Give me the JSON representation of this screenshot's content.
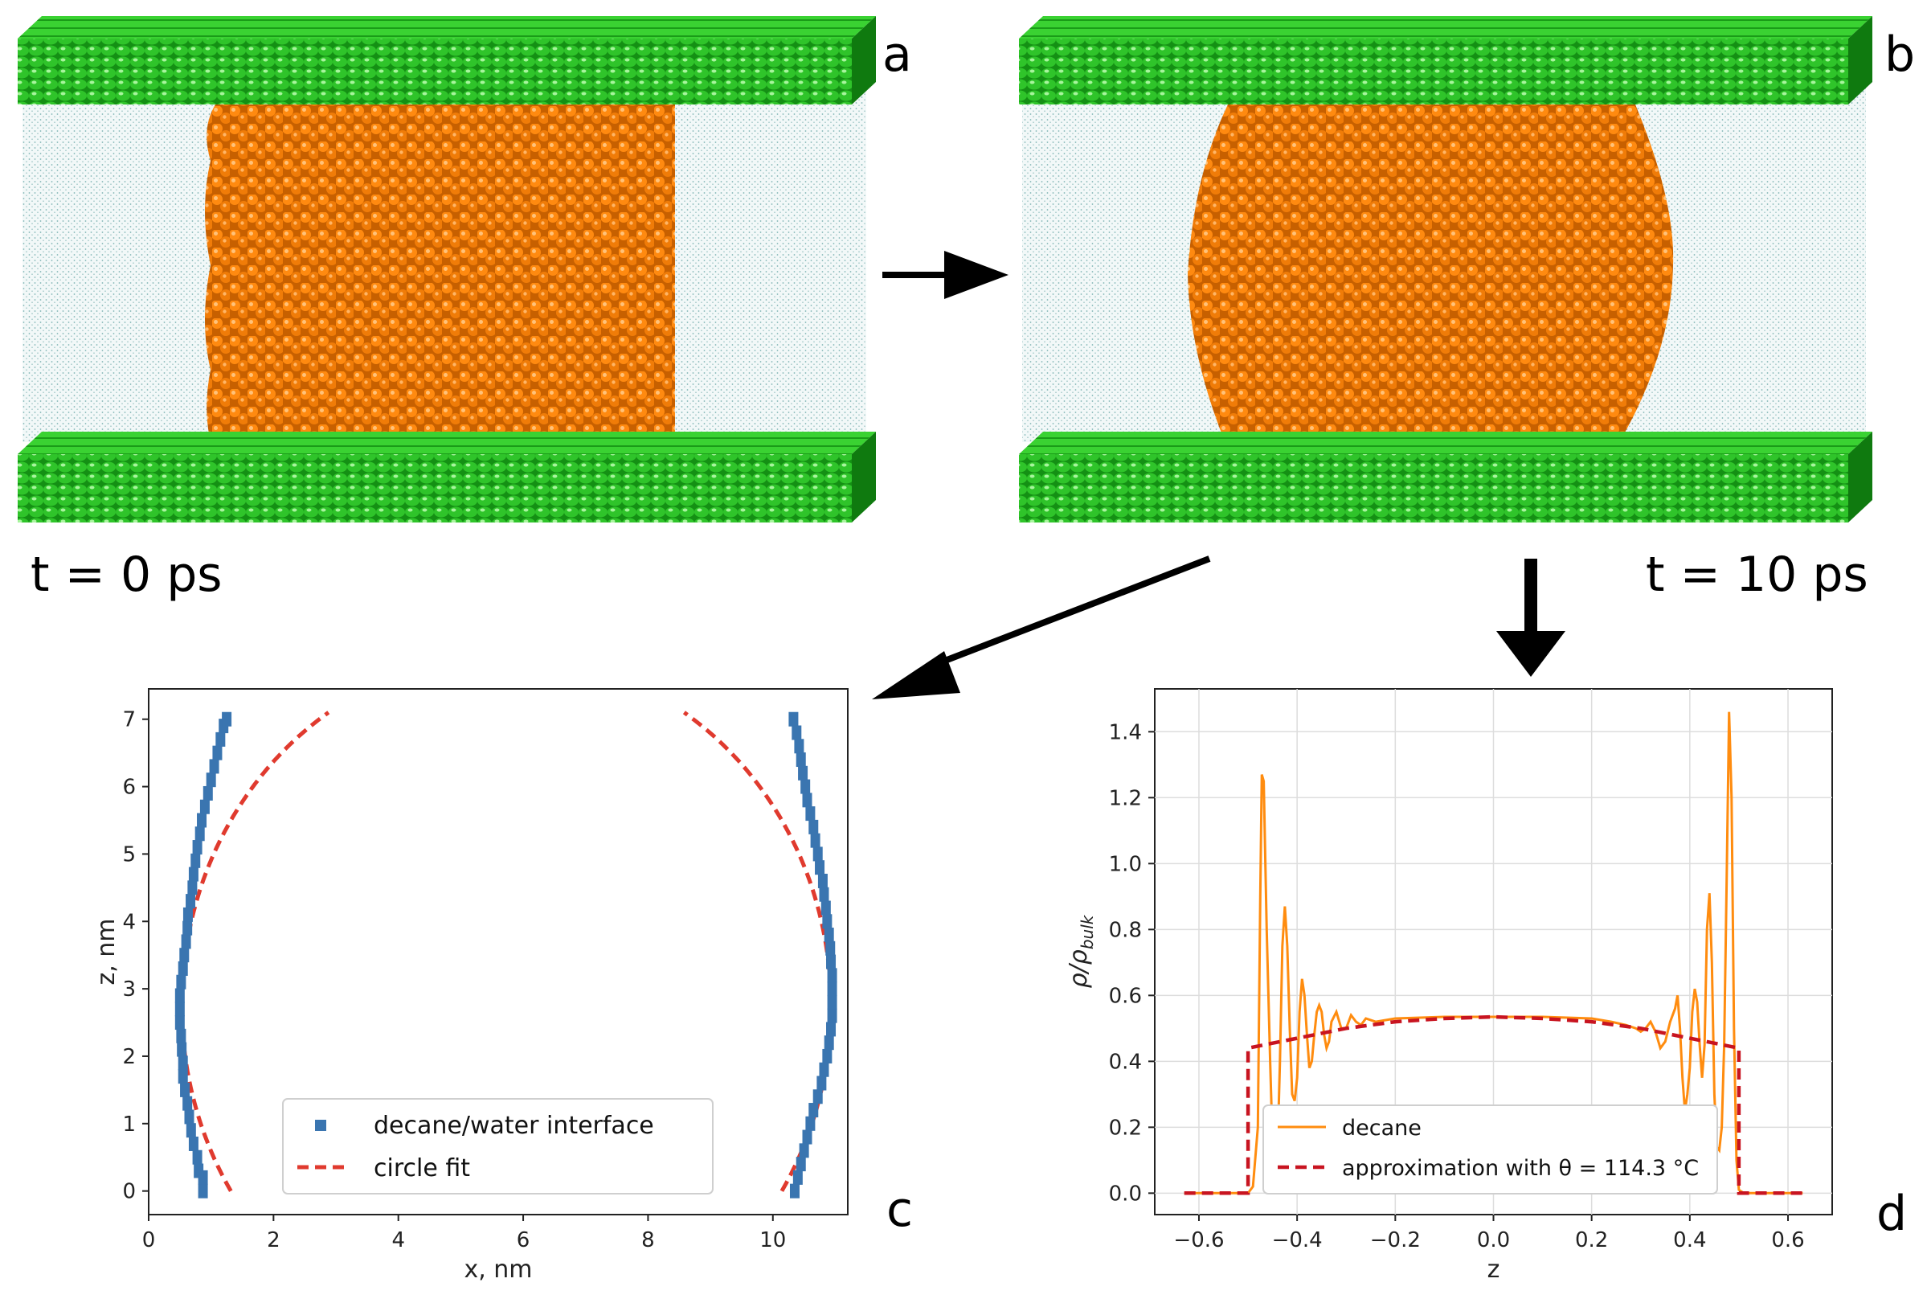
{
  "labels": {
    "panel_a": "a",
    "panel_b": "b",
    "panel_c": "c",
    "panel_d": "d",
    "time_a": "t = 0 ps",
    "time_b": "t = 10 ps"
  },
  "colors": {
    "graphene": "#2fc42a",
    "graphene_dark": "#149014",
    "decane": "#ff8a10",
    "decane_dark": "#b85500",
    "water": "#7fb3b3",
    "interface_marker": "#3a75b0",
    "circle_fit": "#e03a2e",
    "density_line": "#ff8c0f",
    "approx_line": "#c81420"
  },
  "chart_data": [
    {
      "type": "scatter",
      "panel": "c",
      "title": "",
      "xlabel": "x, nm",
      "ylabel": "z, nm",
      "xlim": [
        0,
        11.2
      ],
      "ylim": [
        -0.35,
        7.45
      ],
      "xticks": [
        0,
        2,
        4,
        6,
        8,
        10
      ],
      "yticks": [
        0,
        1,
        2,
        3,
        4,
        5,
        6,
        7
      ],
      "grid": false,
      "legend_position": "lower-center",
      "series": [
        {
          "name": "decane/water interface",
          "kind": "markers",
          "left_branch": [
            [
              0.87,
              0.0
            ],
            [
              0.87,
              0.2
            ],
            [
              0.8,
              0.3
            ],
            [
              0.78,
              0.5
            ],
            [
              0.72,
              0.7
            ],
            [
              0.68,
              0.9
            ],
            [
              0.65,
              1.1
            ],
            [
              0.62,
              1.3
            ],
            [
              0.58,
              1.5
            ],
            [
              0.55,
              1.7
            ],
            [
              0.55,
              1.9
            ],
            [
              0.53,
              2.1
            ],
            [
              0.52,
              2.3
            ],
            [
              0.5,
              2.5
            ],
            [
              0.5,
              2.7
            ],
            [
              0.5,
              2.9
            ],
            [
              0.52,
              3.1
            ],
            [
              0.55,
              3.3
            ],
            [
              0.57,
              3.5
            ],
            [
              0.6,
              3.7
            ],
            [
              0.62,
              3.9
            ],
            [
              0.63,
              4.1
            ],
            [
              0.67,
              4.3
            ],
            [
              0.7,
              4.5
            ],
            [
              0.72,
              4.7
            ],
            [
              0.75,
              4.9
            ],
            [
              0.78,
              5.1
            ],
            [
              0.82,
              5.3
            ],
            [
              0.85,
              5.5
            ],
            [
              0.9,
              5.7
            ],
            [
              0.95,
              5.9
            ],
            [
              1.0,
              6.1
            ],
            [
              1.05,
              6.3
            ],
            [
              1.1,
              6.5
            ],
            [
              1.15,
              6.7
            ],
            [
              1.2,
              6.9
            ],
            [
              1.25,
              7.0
            ]
          ],
          "right_branch": [
            [
              10.35,
              0.0
            ],
            [
              10.4,
              0.2
            ],
            [
              10.45,
              0.4
            ],
            [
              10.5,
              0.6
            ],
            [
              10.55,
              0.8
            ],
            [
              10.6,
              1.0
            ],
            [
              10.65,
              1.2
            ],
            [
              10.72,
              1.4
            ],
            [
              10.78,
              1.6
            ],
            [
              10.82,
              1.8
            ],
            [
              10.87,
              2.0
            ],
            [
              10.9,
              2.2
            ],
            [
              10.93,
              2.4
            ],
            [
              10.95,
              2.6
            ],
            [
              10.95,
              2.8
            ],
            [
              10.95,
              3.0
            ],
            [
              10.95,
              3.2
            ],
            [
              10.93,
              3.4
            ],
            [
              10.92,
              3.6
            ],
            [
              10.9,
              3.8
            ],
            [
              10.87,
              4.0
            ],
            [
              10.85,
              4.2
            ],
            [
              10.82,
              4.4
            ],
            [
              10.8,
              4.6
            ],
            [
              10.75,
              4.8
            ],
            [
              10.72,
              5.0
            ],
            [
              10.68,
              5.2
            ],
            [
              10.65,
              5.4
            ],
            [
              10.6,
              5.6
            ],
            [
              10.55,
              5.8
            ],
            [
              10.52,
              6.0
            ],
            [
              10.48,
              6.2
            ],
            [
              10.45,
              6.4
            ],
            [
              10.42,
              6.6
            ],
            [
              10.38,
              6.8
            ],
            [
              10.33,
              7.0
            ]
          ]
        },
        {
          "name": "circle fit",
          "kind": "dashed-line",
          "circle": {
            "center_x": 5.73,
            "center_z": 2.75,
            "radius": 5.2
          },
          "z_range": [
            0,
            7.1
          ]
        }
      ]
    },
    {
      "type": "line",
      "panel": "d",
      "title": "",
      "xlabel": "z",
      "ylabel": "ρ/ρ_bulk",
      "xlim": [
        -0.69,
        0.69
      ],
      "ylim": [
        -0.065,
        1.53
      ],
      "xticks": [
        -0.6,
        -0.4,
        -0.2,
        0.0,
        0.2,
        0.4,
        0.6
      ],
      "xtick_labels": [
        "−0.6",
        "−0.4",
        "−0.2",
        "0.0",
        "0.2",
        "0.4",
        "0.6"
      ],
      "yticks": [
        0.0,
        0.2,
        0.4,
        0.6,
        0.8,
        1.0,
        1.2,
        1.4
      ],
      "ytick_labels": [
        "0.0",
        "0.2",
        "0.4",
        "0.6",
        "0.8",
        "1.0",
        "1.2",
        "1.4"
      ],
      "grid": true,
      "legend_position": "lower-center",
      "series": [
        {
          "name": "decane",
          "kind": "solid",
          "points": [
            [
              -0.63,
              0.0
            ],
            [
              -0.5,
              0.0
            ],
            [
              -0.49,
              0.02
            ],
            [
              -0.48,
              0.2
            ],
            [
              -0.475,
              0.9
            ],
            [
              -0.472,
              1.27
            ],
            [
              -0.468,
              1.25
            ],
            [
              -0.462,
              0.8
            ],
            [
              -0.455,
              0.4
            ],
            [
              -0.45,
              0.15
            ],
            [
              -0.445,
              0.05
            ],
            [
              -0.44,
              0.12
            ],
            [
              -0.435,
              0.4
            ],
            [
              -0.43,
              0.75
            ],
            [
              -0.425,
              0.87
            ],
            [
              -0.42,
              0.75
            ],
            [
              -0.415,
              0.5
            ],
            [
              -0.41,
              0.3
            ],
            [
              -0.405,
              0.28
            ],
            [
              -0.4,
              0.35
            ],
            [
              -0.395,
              0.55
            ],
            [
              -0.39,
              0.65
            ],
            [
              -0.385,
              0.6
            ],
            [
              -0.38,
              0.48
            ],
            [
              -0.375,
              0.38
            ],
            [
              -0.37,
              0.4
            ],
            [
              -0.365,
              0.48
            ],
            [
              -0.36,
              0.55
            ],
            [
              -0.355,
              0.57
            ],
            [
              -0.35,
              0.55
            ],
            [
              -0.345,
              0.48
            ],
            [
              -0.34,
              0.44
            ],
            [
              -0.335,
              0.46
            ],
            [
              -0.33,
              0.52
            ],
            [
              -0.32,
              0.55
            ],
            [
              -0.31,
              0.5
            ],
            [
              -0.3,
              0.5
            ],
            [
              -0.29,
              0.54
            ],
            [
              -0.28,
              0.52
            ],
            [
              -0.27,
              0.51
            ],
            [
              -0.26,
              0.53
            ],
            [
              -0.24,
              0.52
            ],
            [
              -0.2,
              0.53
            ],
            [
              -0.1,
              0.535
            ],
            [
              0.0,
              0.535
            ],
            [
              0.1,
              0.535
            ],
            [
              0.2,
              0.53
            ],
            [
              0.24,
              0.52
            ],
            [
              0.27,
              0.51
            ],
            [
              0.29,
              0.5
            ],
            [
              0.3,
              0.49
            ],
            [
              0.31,
              0.5
            ],
            [
              0.32,
              0.52
            ],
            [
              0.33,
              0.49
            ],
            [
              0.34,
              0.44
            ],
            [
              0.35,
              0.46
            ],
            [
              0.36,
              0.52
            ],
            [
              0.37,
              0.56
            ],
            [
              0.375,
              0.6
            ],
            [
              0.38,
              0.5
            ],
            [
              0.385,
              0.35
            ],
            [
              0.39,
              0.25
            ],
            [
              0.395,
              0.3
            ],
            [
              0.4,
              0.38
            ],
            [
              0.405,
              0.55
            ],
            [
              0.41,
              0.62
            ],
            [
              0.415,
              0.58
            ],
            [
              0.42,
              0.45
            ],
            [
              0.425,
              0.35
            ],
            [
              0.43,
              0.45
            ],
            [
              0.435,
              0.8
            ],
            [
              0.44,
              0.91
            ],
            [
              0.445,
              0.7
            ],
            [
              0.45,
              0.3
            ],
            [
              0.455,
              0.14
            ],
            [
              0.46,
              0.13
            ],
            [
              0.465,
              0.2
            ],
            [
              0.47,
              0.45
            ],
            [
              0.475,
              0.95
            ],
            [
              0.48,
              1.46
            ],
            [
              0.485,
              1.2
            ],
            [
              0.49,
              0.5
            ],
            [
              0.495,
              0.1
            ],
            [
              0.5,
              0.01
            ],
            [
              0.51,
              0.0
            ],
            [
              0.63,
              0.0
            ]
          ]
        },
        {
          "name": "approximation with θ = 114.3 °C",
          "kind": "dashed",
          "points": [
            [
              -0.63,
              0.0
            ],
            [
              -0.5,
              0.0
            ],
            [
              -0.5,
              0.44
            ],
            [
              -0.4,
              0.47
            ],
            [
              -0.3,
              0.5
            ],
            [
              -0.2,
              0.52
            ],
            [
              -0.1,
              0.53
            ],
            [
              0.0,
              0.535
            ],
            [
              0.1,
              0.53
            ],
            [
              0.2,
              0.52
            ],
            [
              0.3,
              0.5
            ],
            [
              0.4,
              0.47
            ],
            [
              0.5,
              0.44
            ],
            [
              0.5,
              0.0
            ],
            [
              0.63,
              0.0
            ]
          ]
        }
      ]
    }
  ]
}
